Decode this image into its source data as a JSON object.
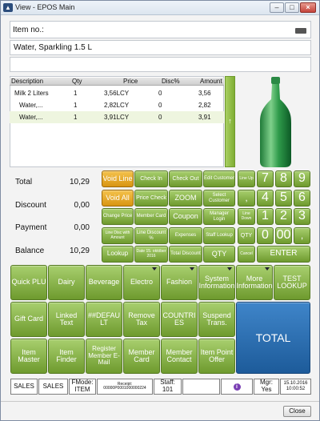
{
  "window": {
    "title": "View - EPOS Main"
  },
  "item_no": {
    "label": "Item no.:",
    "value": ""
  },
  "description_field": {
    "value": "Water, Sparkling 1.5 L"
  },
  "grid": {
    "headers": {
      "description": "Description",
      "qty": "Qty",
      "price": "Price",
      "disc": "Disc%",
      "amount": "Amount"
    },
    "rows": [
      {
        "description": "Milk 2 Liters",
        "qty": "1",
        "price": "3,56LCY",
        "disc": "0",
        "amount": "3,56"
      },
      {
        "description": "Water,...",
        "qty": "1",
        "price": "2,82LCY",
        "disc": "0",
        "amount": "2,82"
      },
      {
        "description": "Water,...",
        "qty": "1",
        "price": "3,91LCY",
        "disc": "0",
        "amount": "3,91"
      }
    ],
    "scroll_arrow": "↑"
  },
  "totals": {
    "total_label": "Total",
    "total_value": "10,29",
    "discount_label": "Discount",
    "discount_value": "0,00",
    "payment_label": "Payment",
    "payment_value": "0,00",
    "balance_label": "Balance",
    "balance_value": "10,29"
  },
  "func_buttons": [
    "Void Line",
    "Check In",
    "Check Out",
    "Edit Customer",
    "Line Up",
    "Void All",
    "Price Check",
    "ZOOM",
    "Select Customer",
    "Change Price",
    "Member Card",
    "Coupon",
    "Manager Login",
    "Line Down",
    "Line Disc with Amount",
    "Line Discount %",
    "Expenses",
    "Staff Lookup",
    "QTY",
    "Lookup",
    "Date 15. október 2016",
    "Total Discount",
    "QTY",
    "Cancel"
  ],
  "numpad": {
    "keys": [
      "7",
      "8",
      "9",
      ",",
      "4",
      "5",
      "6",
      "1",
      "2",
      "3",
      "0",
      "00",
      ",",
      "ENTER"
    ]
  },
  "menu_buttons": [
    "Quick PLU",
    "Dairy",
    "Beverage",
    "Electro",
    "Fashion",
    "System Information",
    "More Information",
    "TEST LOOKUP",
    "Gift Card",
    "Linked Text",
    "##DEFAULT",
    "Remove Tax",
    "COUNTRIES",
    "Suspend Trans.",
    "Item Master",
    "Item Finder",
    "Register Member E-Mail",
    "Member Card",
    "Member Contact",
    "Item Point Offer"
  ],
  "total_button": "TOTAL",
  "status": {
    "sales1": "SALES",
    "sales2": "SALES",
    "fmode_label": "FMode:",
    "fmode_value": "ITEM",
    "receipt_label": "Receipt:",
    "receipt_value": "00000P0001000000224",
    "staff_label": "Staff:",
    "staff_value": "101",
    "mgr_label": "Mgr:",
    "mgr_value": "Yes",
    "datetime": "15.10.2016 10:00:52"
  },
  "close_button": "Close",
  "colors": {
    "accent_green": "#8cbf4e",
    "accent_orange": "#e8a823",
    "total_blue": "#2a6cae"
  }
}
